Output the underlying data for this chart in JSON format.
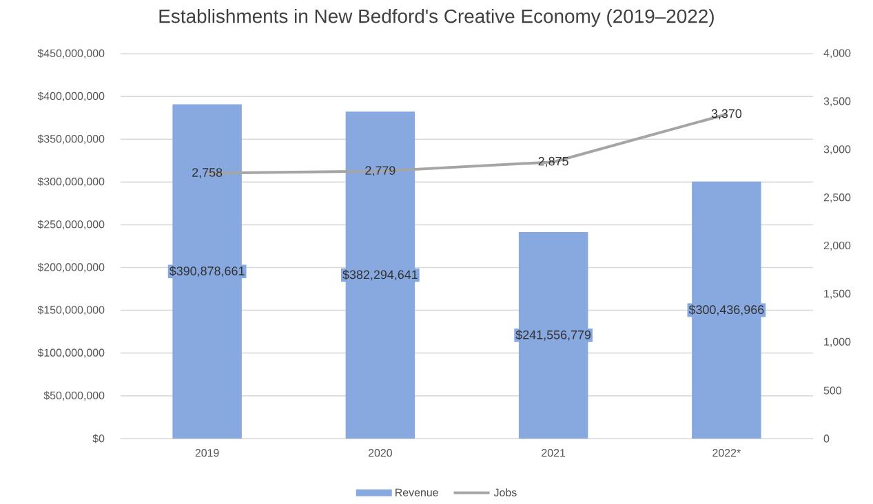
{
  "chart_data": {
    "type": "bar",
    "title": "Establishments in New Bedford's Creative Economy (2019–2022)",
    "categories": [
      "2019",
      "2020",
      "2021",
      "2022*"
    ],
    "series": [
      {
        "name": "Revenue",
        "color": "#88a8e0",
        "values": [
          390878661,
          382294641,
          241556779,
          300436966
        ],
        "value_labels": [
          "$390,878,661",
          "$382,294,641",
          "$241,556,779",
          "$300,436,966"
        ]
      },
      {
        "name": "Jobs",
        "type": "line",
        "axis": "y2",
        "color": "#a5a5a5",
        "values": [
          2758,
          2779,
          2875,
          3370
        ],
        "value_labels": [
          "2,758",
          "2,779",
          "2,875",
          "3,370"
        ]
      }
    ],
    "ylim": [
      0,
      450000000
    ],
    "yticks": [
      {
        "value": 0,
        "label": "$0"
      },
      {
        "value": 50000000,
        "label": "$50,000,000"
      },
      {
        "value": 100000000,
        "label": "$100,000,000"
      },
      {
        "value": 150000000,
        "label": "$150,000,000"
      },
      {
        "value": 200000000,
        "label": "$200,000,000"
      },
      {
        "value": 250000000,
        "label": "$250,000,000"
      },
      {
        "value": 300000000,
        "label": "$300,000,000"
      },
      {
        "value": 350000000,
        "label": "$350,000,000"
      },
      {
        "value": 400000000,
        "label": "$400,000,000"
      },
      {
        "value": 450000000,
        "label": "$450,000,000"
      }
    ],
    "y2lim": [
      0,
      4000
    ],
    "y2ticks": [
      0,
      {
        "value": 500,
        "label": "500"
      },
      {
        "value": 1000,
        "label": "1,000"
      },
      {
        "value": 1500,
        "label": "1,500"
      },
      {
        "value": 2000,
        "label": "2,000"
      },
      {
        "value": 2500,
        "label": "2,500"
      },
      {
        "value": 3000,
        "label": "3,000"
      },
      {
        "value": 3500,
        "label": "3,500"
      },
      {
        "value": 4000,
        "label": "4,000"
      }
    ],
    "grid": "y",
    "legend": "bottom"
  }
}
